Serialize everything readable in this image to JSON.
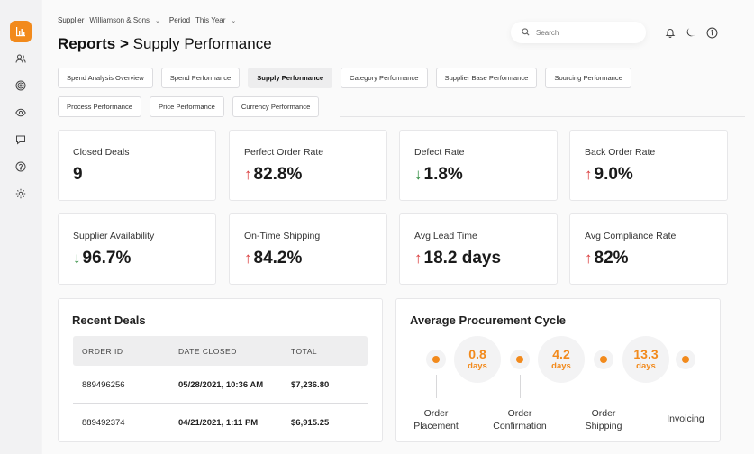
{
  "colors": {
    "accent": "#f28a1c",
    "up": "#d93a3a",
    "down": "#2e8b3e"
  },
  "sidebar": {
    "logo_icon": "bar-chart-icon",
    "items": [
      {
        "icon": "users-icon"
      },
      {
        "icon": "target-icon"
      },
      {
        "icon": "eye-icon"
      },
      {
        "icon": "chat-icon"
      },
      {
        "icon": "help-icon"
      },
      {
        "icon": "settings-icon"
      }
    ]
  },
  "filters": {
    "supplier_label": "Supplier",
    "supplier_value": "Williamson & Sons",
    "period_label": "Period",
    "period_value": "This Year"
  },
  "title": {
    "section": "Reports",
    "sep": ">",
    "page": "Supply Performance"
  },
  "search": {
    "placeholder": "Search"
  },
  "header_icons": [
    "bell-icon",
    "moon-icon",
    "info-icon"
  ],
  "tabs_row1": [
    "Spend Analysis Overview",
    "Spend Performance",
    "Supply Performance",
    "Category Performance",
    "Supplier Base Performance",
    "Sourcing Performance"
  ],
  "tabs_row2": [
    "Process Performance",
    "Price Performance",
    "Currency Performance"
  ],
  "active_tab": "Supply Performance",
  "metrics": [
    {
      "label": "Closed Deals",
      "value": "9",
      "trend": "none"
    },
    {
      "label": "Perfect Order Rate",
      "value": "82.8%",
      "trend": "up"
    },
    {
      "label": "Defect Rate",
      "value": "1.8%",
      "trend": "down"
    },
    {
      "label": "Back Order Rate",
      "value": "9.0%",
      "trend": "up"
    },
    {
      "label": "Supplier Availability",
      "value": "96.7%",
      "trend": "down"
    },
    {
      "label": "On-Time Shipping",
      "value": "84.2%",
      "trend": "up"
    },
    {
      "label": "Avg Lead Time",
      "value": "18.2 days",
      "trend": "up"
    },
    {
      "label": "Avg Compliance Rate",
      "value": "82%",
      "trend": "up"
    }
  ],
  "recent_deals": {
    "title": "Recent Deals",
    "columns": [
      "ORDER ID",
      "DATE CLOSED",
      "TOTAL"
    ],
    "rows": [
      {
        "id": "889496256",
        "date": "05/28/2021, 10:36 AM",
        "total": "$7,236.80"
      },
      {
        "id": "889492374",
        "date": "04/21/2021, 1:11 PM",
        "total": "$6,915.25"
      }
    ]
  },
  "procurement": {
    "title": "Average Procurement Cycle",
    "durations": [
      {
        "value": "0.8",
        "unit": "days"
      },
      {
        "value": "4.2",
        "unit": "days"
      },
      {
        "value": "13.3",
        "unit": "days"
      }
    ],
    "steps": [
      {
        "line1": "Order",
        "line2": "Placement"
      },
      {
        "line1": "Order",
        "line2": "Confirmation"
      },
      {
        "line1": "Order",
        "line2": "Shipping"
      },
      {
        "line1": "Invoicing",
        "line2": ""
      }
    ]
  }
}
